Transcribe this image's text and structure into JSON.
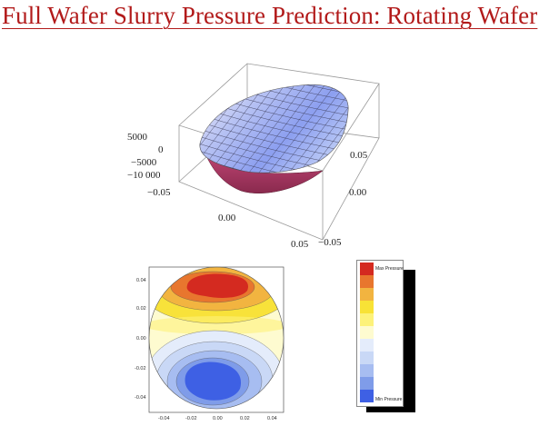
{
  "title": "Full Wafer Slurry Pressure Prediction: Rotating Wafer",
  "surface_plot": {
    "z_ticks": [
      "5000",
      "0",
      "−5000",
      "−10 000"
    ],
    "x_ticks": [
      "−0.05",
      "0.00",
      "0.05"
    ],
    "y_ticks": [
      "0.05",
      "0.00",
      "−0.05"
    ]
  },
  "contour_plot": {
    "y_ticks": [
      "0.04",
      "0.02",
      "0.00",
      "-0.02",
      "-0.04"
    ],
    "x_ticks": [
      "-0.04",
      "-0.02",
      "0.00",
      "0.02",
      "0.04"
    ]
  },
  "legend": {
    "max_label": "Max Pressure",
    "min_label": "Min Pressure",
    "colors": [
      "#d42a20",
      "#e8762e",
      "#f2b440",
      "#f8e236",
      "#fdf27a",
      "#fefbd0",
      "#e4ecfb",
      "#c9d8f6",
      "#a7bdf1",
      "#7f9ce9",
      "#3e60e4"
    ]
  }
}
